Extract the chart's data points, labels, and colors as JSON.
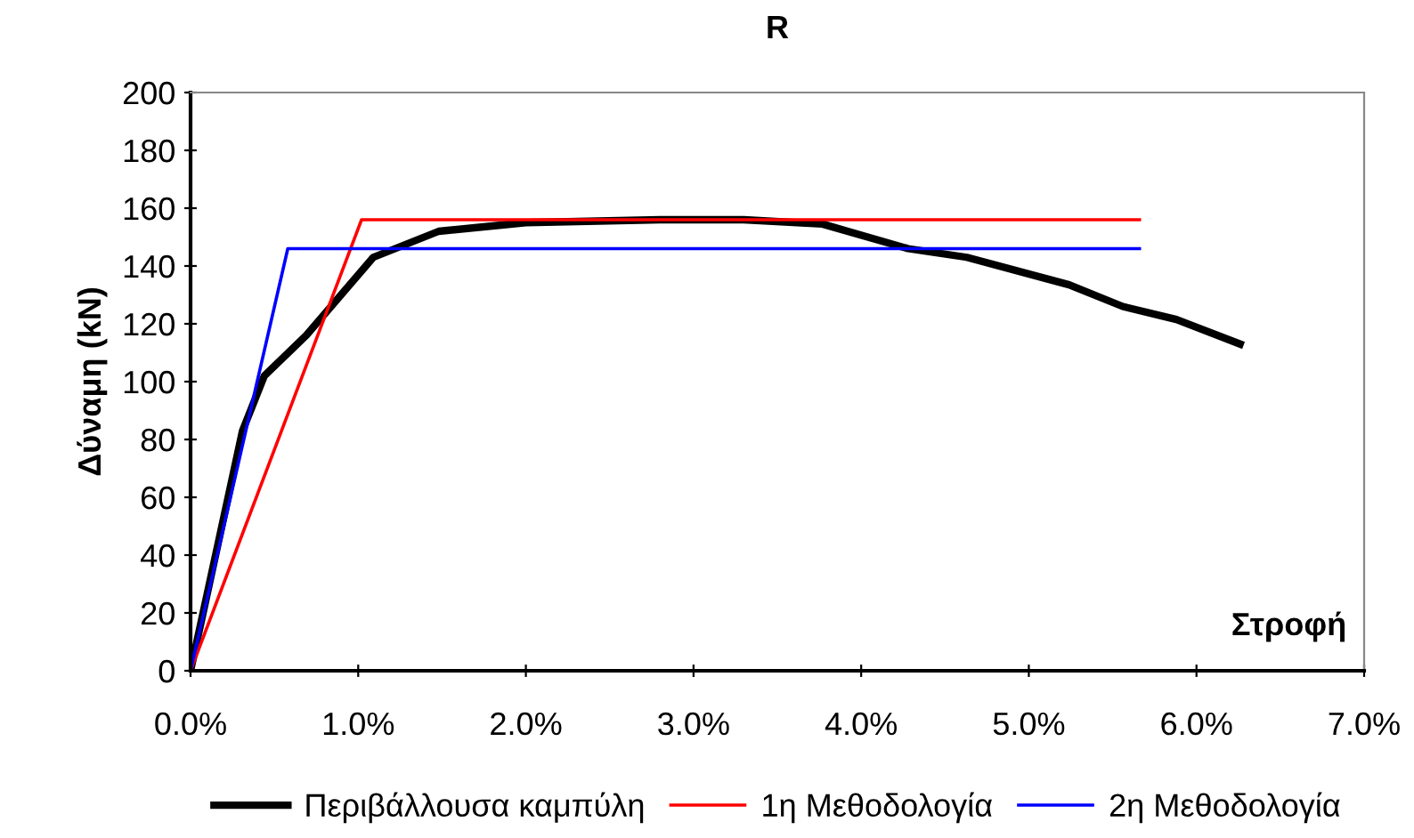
{
  "chart_data": {
    "type": "line",
    "title": "R",
    "xlabel": "Στροφή",
    "ylabel": "Δύναμη (kN)",
    "xlim": [
      0,
      7
    ],
    "xticks": [
      {
        "value": 0,
        "label": "0.0%"
      },
      {
        "value": 1,
        "label": "1.0%"
      },
      {
        "value": 2,
        "label": "2.0%"
      },
      {
        "value": 3,
        "label": "3.0%"
      },
      {
        "value": 4,
        "label": "4.0%"
      },
      {
        "value": 5,
        "label": "5.0%"
      },
      {
        "value": 6,
        "label": "6.0%"
      },
      {
        "value": 7,
        "label": "7.0%"
      }
    ],
    "ylim": [
      0,
      200
    ],
    "yticks": [
      0,
      20,
      40,
      60,
      80,
      100,
      120,
      140,
      160,
      180,
      200
    ],
    "grid": false,
    "legend": "bottom",
    "marker": "none",
    "line_style": "solid",
    "series": [
      {
        "name": "Περιβάλλουσα καμπύλη",
        "color": "#000000",
        "x": [
          0,
          0.31,
          0.44,
          0.69,
          1.09,
          1.48,
          2.0,
          2.8,
          3.3,
          3.77,
          4.28,
          4.63,
          5.24,
          5.56,
          5.88,
          6.26
        ],
        "values": [
          0,
          83,
          102,
          116,
          143,
          152,
          155,
          156,
          156,
          154.5,
          146,
          143,
          133.5,
          126,
          121.5,
          113
        ]
      },
      {
        "name": "1η Μεθοδολογία",
        "color": "#ff0000",
        "x": [
          0,
          1.02,
          5.66
        ],
        "values": [
          0,
          156,
          156
        ]
      },
      {
        "name": "2η Μεθοδολογία",
        "color": "#0000ff",
        "x": [
          0,
          0.58,
          5.66
        ],
        "values": [
          0,
          146,
          146
        ]
      }
    ]
  }
}
